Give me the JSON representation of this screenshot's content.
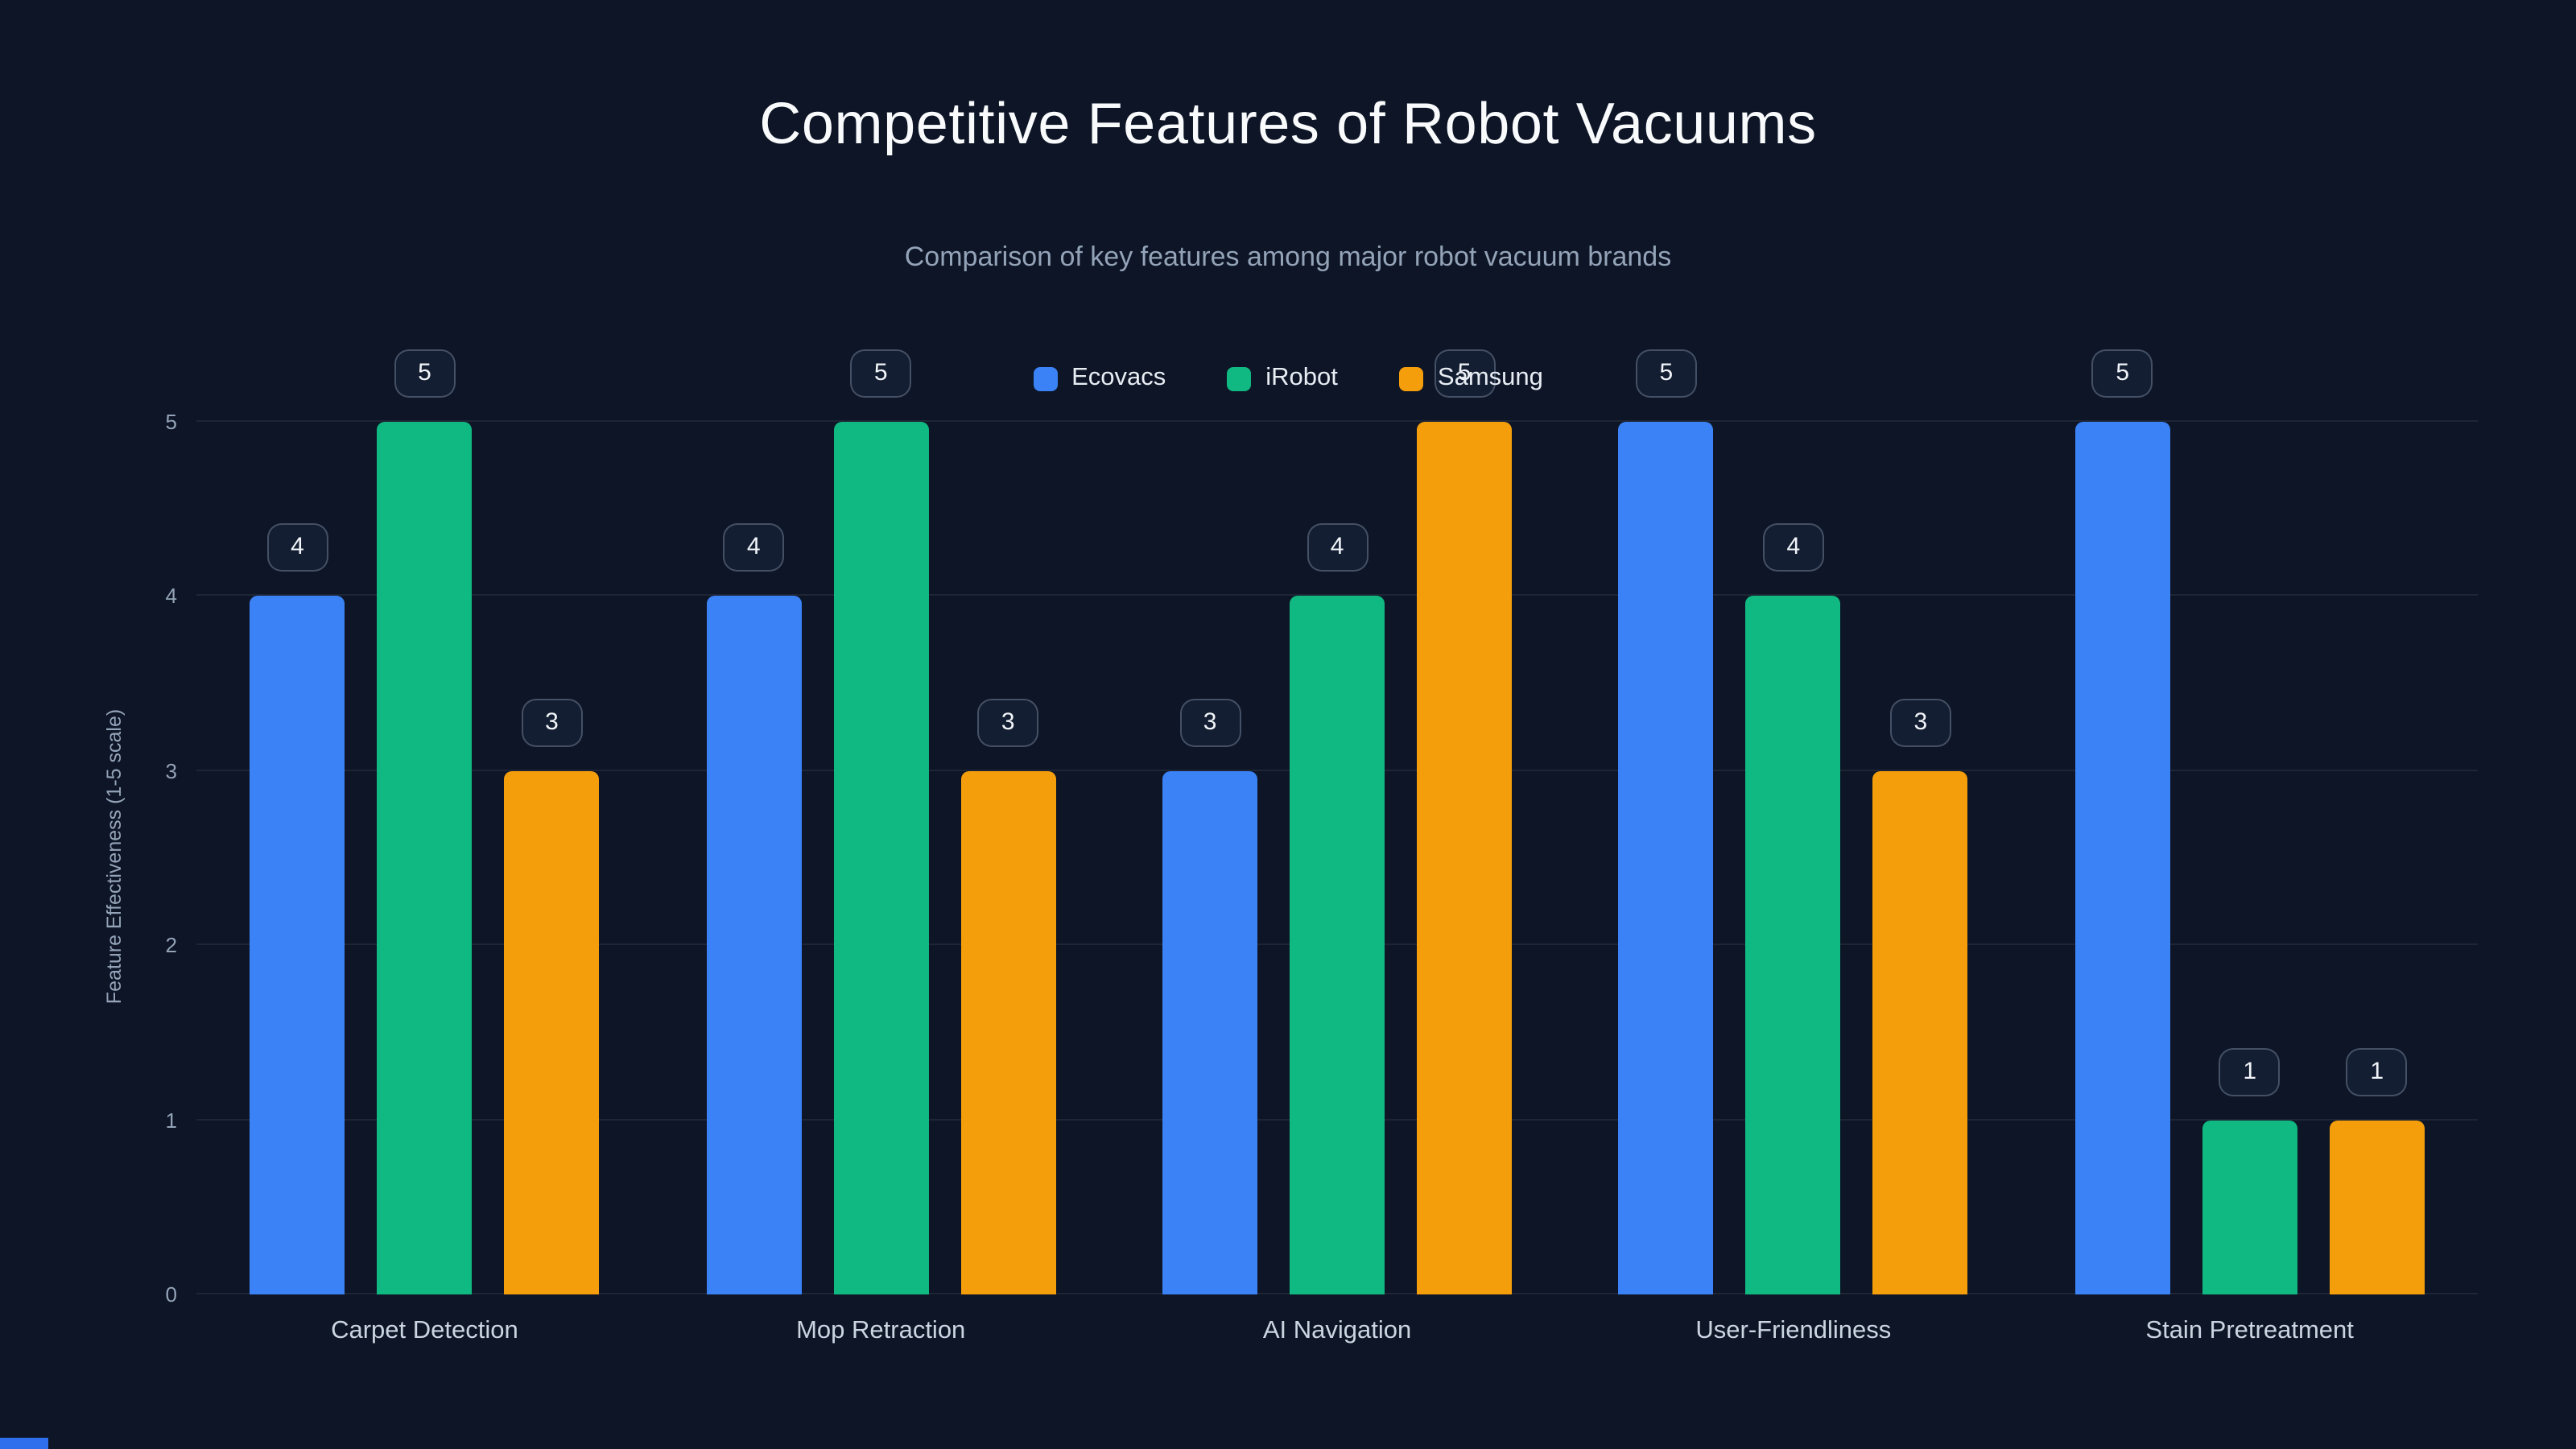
{
  "page": {
    "background": "#0d1526",
    "accent_color": "#2f6fed"
  },
  "chart_data": {
    "type": "bar",
    "title": "Competitive Features of Robot Vacuums",
    "subtitle": "Comparison of key features among major robot vacuum brands",
    "ylabel": "Feature Effectiveness (1-5 scale)",
    "xlabel": "",
    "categories": [
      "Carpet Detection",
      "Mop Retraction",
      "AI Navigation",
      "User-Friendliness",
      "Stain Pretreatment"
    ],
    "series": [
      {
        "name": "Ecovacs",
        "color": "#3b82f6",
        "values": [
          4,
          4,
          3,
          5,
          5
        ]
      },
      {
        "name": "iRobot",
        "color": "#10b981",
        "values": [
          5,
          5,
          4,
          4,
          1
        ]
      },
      {
        "name": "Samsung",
        "color": "#f59e0b",
        "values": [
          3,
          3,
          5,
          3,
          1
        ]
      }
    ],
    "yticks": [
      0,
      1,
      2,
      3,
      4,
      5
    ],
    "ylim": [
      0,
      5
    ],
    "grid": true,
    "legend_position": "top-center",
    "value_labels": "badge-above-bar"
  }
}
